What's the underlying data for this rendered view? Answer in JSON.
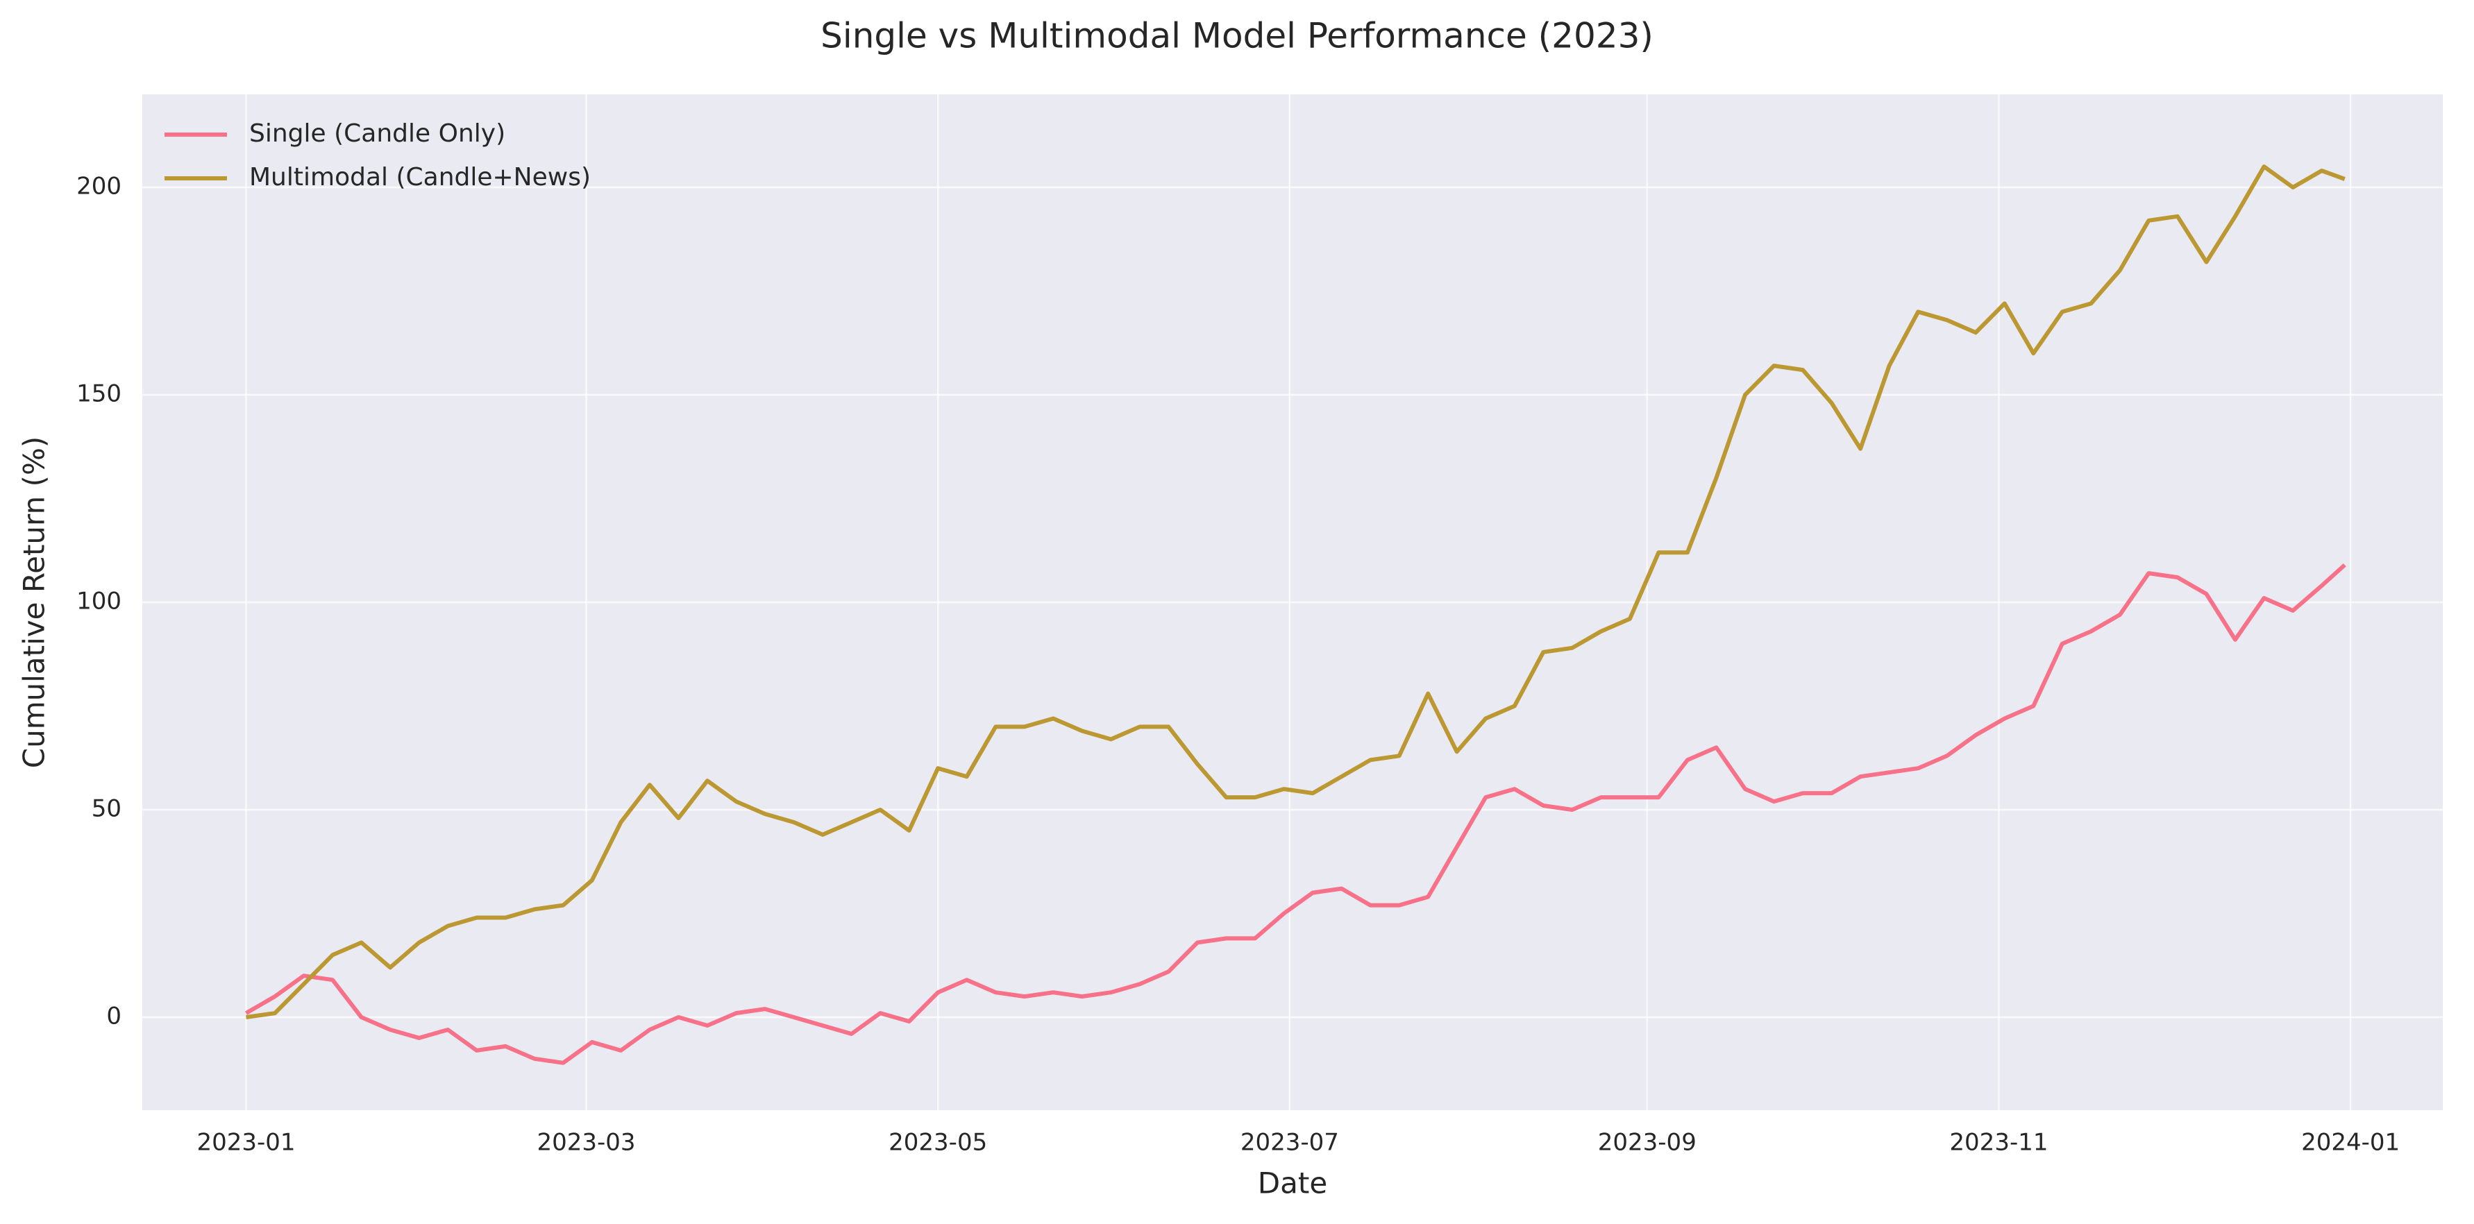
{
  "chart_data": {
    "type": "line",
    "title": "Single vs Multimodal Model Performance (2023)",
    "x_label": "Date",
    "y_label": "Cumulative Return (%)",
    "x": [
      "2023-01-01",
      "2023-01-06",
      "2023-01-11",
      "2023-01-16",
      "2023-01-21",
      "2023-01-26",
      "2023-01-31",
      "2023-02-05",
      "2023-02-10",
      "2023-02-15",
      "2023-02-20",
      "2023-02-25",
      "2023-03-02",
      "2023-03-07",
      "2023-03-12",
      "2023-03-17",
      "2023-03-22",
      "2023-03-27",
      "2023-04-01",
      "2023-04-06",
      "2023-04-11",
      "2023-04-16",
      "2023-04-21",
      "2023-04-26",
      "2023-05-01",
      "2023-05-06",
      "2023-05-11",
      "2023-05-16",
      "2023-05-21",
      "2023-05-26",
      "2023-05-31",
      "2023-06-05",
      "2023-06-10",
      "2023-06-15",
      "2023-06-20",
      "2023-06-25",
      "2023-06-30",
      "2023-07-05",
      "2023-07-10",
      "2023-07-15",
      "2023-07-20",
      "2023-07-25",
      "2023-07-30",
      "2023-08-04",
      "2023-08-09",
      "2023-08-14",
      "2023-08-19",
      "2023-08-24",
      "2023-08-29",
      "2023-09-03",
      "2023-09-08",
      "2023-09-13",
      "2023-09-18",
      "2023-09-23",
      "2023-09-28",
      "2023-10-03",
      "2023-10-08",
      "2023-10-13",
      "2023-10-18",
      "2023-10-23",
      "2023-10-28",
      "2023-11-02",
      "2023-11-07",
      "2023-11-12",
      "2023-11-17",
      "2023-11-22",
      "2023-11-27",
      "2023-12-02",
      "2023-12-07",
      "2023-12-12",
      "2023-12-17",
      "2023-12-22",
      "2023-12-27",
      "2023-12-31"
    ],
    "series": [
      {
        "name": "Single (Candle Only)",
        "color": "#f77189",
        "values": [
          1,
          5,
          10,
          9,
          0,
          -3,
          -5,
          -3,
          -8,
          -7,
          -10,
          -11,
          -6,
          -8,
          -3,
          0,
          -2,
          1,
          2,
          0,
          -2,
          -4,
          1,
          -1,
          6,
          9,
          6,
          5,
          6,
          5,
          6,
          8,
          11,
          18,
          19,
          19,
          25,
          30,
          31,
          27,
          27,
          29,
          41,
          53,
          55,
          51,
          50,
          53,
          53,
          53,
          62,
          65,
          55,
          52,
          54,
          54,
          58,
          59,
          60,
          63,
          68,
          72,
          75,
          90,
          93,
          97,
          107,
          106,
          102,
          91,
          101,
          98,
          104,
          109
        ]
      },
      {
        "name": "Multimodal (Candle+News)",
        "color": "#bb9832",
        "values": [
          0,
          1,
          8,
          15,
          18,
          12,
          18,
          22,
          24,
          24,
          26,
          27,
          33,
          47,
          56,
          48,
          57,
          52,
          49,
          47,
          44,
          47,
          50,
          45,
          60,
          58,
          70,
          70,
          72,
          69,
          67,
          70,
          70,
          61,
          53,
          53,
          55,
          54,
          58,
          62,
          63,
          78,
          64,
          72,
          75,
          88,
          89,
          93,
          96,
          112,
          112,
          130,
          150,
          157,
          156,
          148,
          137,
          157,
          170,
          168,
          165,
          172,
          160,
          170,
          172,
          180,
          192,
          193,
          182,
          193,
          205,
          200,
          204,
          202
        ]
      }
    ],
    "xlim": [
      "2022-12-14",
      "2024-01-17"
    ],
    "xticks": [
      {
        "value": "2023-01-01",
        "label": "2023-01"
      },
      {
        "value": "2023-03-01",
        "label": "2023-03"
      },
      {
        "value": "2023-05-01",
        "label": "2023-05"
      },
      {
        "value": "2023-07-01",
        "label": "2023-07"
      },
      {
        "value": "2023-09-01",
        "label": "2023-09"
      },
      {
        "value": "2023-11-01",
        "label": "2023-11"
      },
      {
        "value": "2024-01-01",
        "label": "2024-01"
      }
    ],
    "ylim": [
      -22.4,
      222.4
    ],
    "yticks": [
      0,
      50,
      100,
      150,
      200
    ],
    "grid": true,
    "legend": "upper left"
  }
}
